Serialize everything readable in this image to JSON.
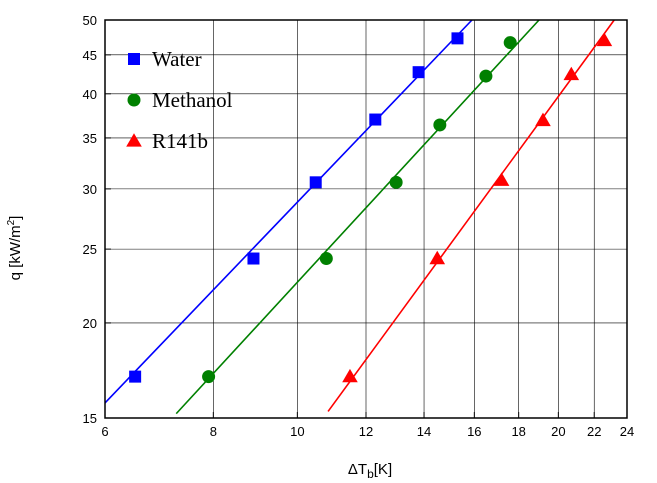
{
  "chart_data": {
    "type": "scatter",
    "xscale": "log",
    "yscale": "log",
    "xlim": [
      6,
      24
    ],
    "ylim": [
      15,
      50
    ],
    "xticks": [
      6,
      8,
      10,
      12,
      14,
      16,
      18,
      20,
      22,
      24
    ],
    "yticks": [
      15,
      20,
      25,
      30,
      35,
      40,
      45,
      50
    ],
    "xlabel": {
      "main": "ΔT",
      "sub": "b",
      "unit": "[K]"
    },
    "ylabel": {
      "main": "q [kW/m",
      "sup": "2",
      "close": "]"
    },
    "grid": true,
    "legend_position": "top-left",
    "series": [
      {
        "name": "Water",
        "marker": "square",
        "color": "#0000ff",
        "x": [
          6.5,
          8.9,
          10.5,
          12.3,
          13.8,
          15.3
        ],
        "y": [
          17.0,
          24.3,
          30.6,
          37.0,
          42.7,
          47.3
        ],
        "fit_line": {
          "x": [
            6.0,
            15.9
          ],
          "y": [
            15.7,
            50.0
          ]
        }
      },
      {
        "name": "Methanol",
        "marker": "circle",
        "color": "#008000",
        "x": [
          7.9,
          10.8,
          13.0,
          14.6,
          16.5,
          17.6
        ],
        "y": [
          17.0,
          24.3,
          30.6,
          36.4,
          42.2,
          46.7
        ],
        "fit_line": {
          "x": [
            7.25,
            19.0
          ],
          "y": [
            15.2,
            50.0
          ]
        }
      },
      {
        "name": "R141b",
        "marker": "triangle",
        "color": "#ff0000",
        "x": [
          11.5,
          14.5,
          17.2,
          19.2,
          20.7,
          22.6
        ],
        "y": [
          17.0,
          24.3,
          30.8,
          36.9,
          42.4,
          47.0
        ],
        "fit_line": {
          "x": [
            10.85,
            23.2
          ],
          "y": [
            15.3,
            50.0
          ]
        }
      }
    ]
  }
}
